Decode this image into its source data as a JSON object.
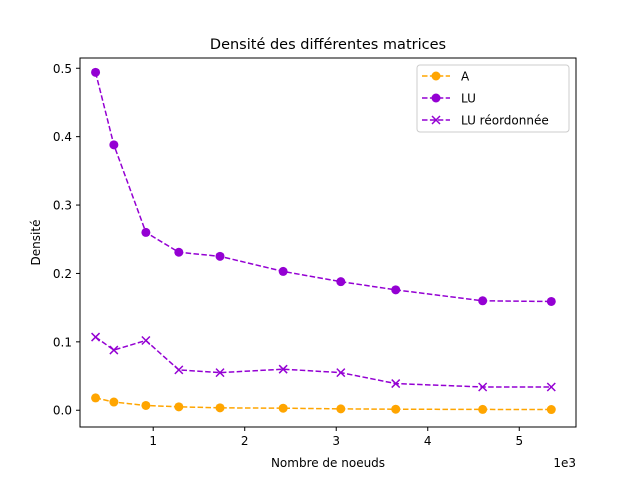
{
  "chart_data": {
    "type": "line",
    "title": "Densité des différentes matrices",
    "xlabel": "Nombre de noeuds",
    "ylabel": "Densité",
    "x_offset_text": "1e3",
    "xlim": [
      0.2,
      5.62
    ],
    "ylim": [
      -0.0245,
      0.515
    ],
    "x_ticks": [
      1,
      2,
      3,
      4,
      5
    ],
    "x_tick_labels": [
      "1",
      "2",
      "3",
      "4",
      "5"
    ],
    "y_ticks": [
      0.0,
      0.1,
      0.2,
      0.3,
      0.4,
      0.5
    ],
    "y_tick_labels": [
      "0.0",
      "0.1",
      "0.2",
      "0.3",
      "0.4",
      "0.5"
    ],
    "grid": false,
    "legend_position": "top-right",
    "x": [
      0.37,
      0.57,
      0.92,
      1.28,
      1.73,
      2.42,
      3.05,
      3.65,
      4.6,
      5.35
    ],
    "series": [
      {
        "name": "A",
        "color": "#ffa500",
        "marker": "circle",
        "line_style": "dashed",
        "values": [
          0.018,
          0.012,
          0.007,
          0.005,
          0.0035,
          0.003,
          0.002,
          0.0015,
          0.0012,
          0.001
        ]
      },
      {
        "name": "LU",
        "color": "#9400d3",
        "marker": "circle",
        "line_style": "dashed",
        "values": [
          0.494,
          0.388,
          0.26,
          0.231,
          0.225,
          0.203,
          0.188,
          0.176,
          0.16,
          0.159
        ]
      },
      {
        "name": "LU réordonnée",
        "color": "#9400d3",
        "marker": "x",
        "line_style": "dashed",
        "values": [
          0.107,
          0.088,
          0.102,
          0.059,
          0.055,
          0.06,
          0.055,
          0.039,
          0.034,
          0.034
        ]
      }
    ]
  }
}
